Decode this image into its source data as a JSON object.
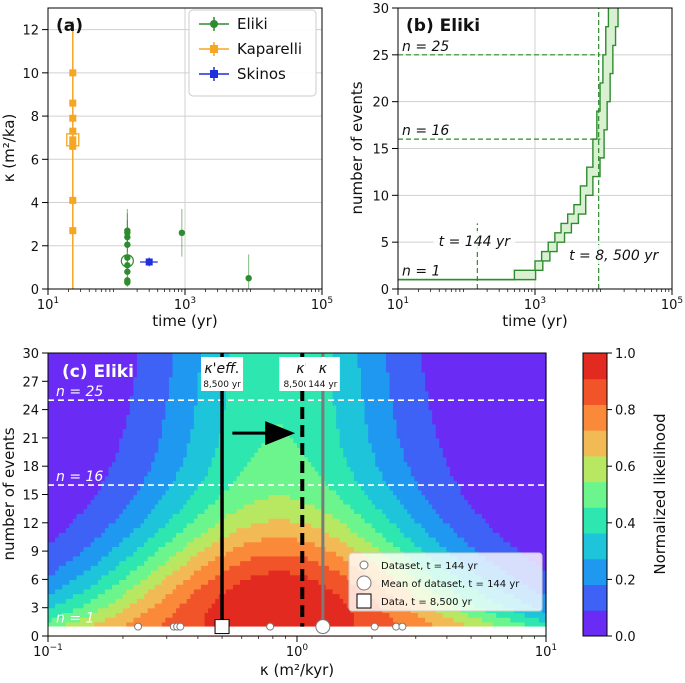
{
  "chart_data": [
    {
      "id": "a",
      "type": "scatter",
      "panel_label": "(a)",
      "xscale": "log",
      "xlim": [
        10,
        100000
      ],
      "ylim": [
        0,
        13
      ],
      "xlabel": "time (yr)",
      "ylabel": "κ (m²/ka)",
      "x_ticks": [
        {
          "value": 10,
          "base": "10",
          "exp": "1"
        },
        {
          "value": 1000,
          "base": "10",
          "exp": "3"
        },
        {
          "value": 100000,
          "base": "10",
          "exp": "5"
        }
      ],
      "y_ticks": [
        0,
        2,
        4,
        6,
        8,
        10,
        12
      ],
      "legend": {
        "position": "top-right",
        "entries": [
          "Eliki",
          "Kaparelli",
          "Skinos"
        ]
      },
      "series": [
        {
          "name": "Eliki",
          "color": "#2e8b2e",
          "points": [
            {
              "x": 144,
              "y": 2.7,
              "ylo": 1.9,
              "yhi": 3.7
            },
            {
              "x": 144,
              "y": 2.6,
              "ylo": 1.9,
              "yhi": 3.5
            },
            {
              "x": 144,
              "y": 2.4,
              "ylo": 1.7,
              "yhi": 3.2
            },
            {
              "x": 144,
              "y": 2.05,
              "ylo": 1.4,
              "yhi": 2.8
            },
            {
              "x": 144,
              "y": 1.45,
              "ylo": 1.0,
              "yhi": 2.0
            },
            {
              "x": 144,
              "y": 1.1,
              "ylo": 0.7,
              "yhi": 1.5
            },
            {
              "x": 144,
              "y": 0.8,
              "ylo": 0.5,
              "yhi": 1.1
            },
            {
              "x": 144,
              "y": 0.4,
              "ylo": 0.2,
              "yhi": 0.65
            },
            {
              "x": 144,
              "y": 0.3,
              "ylo": 0.1,
              "yhi": 0.5
            },
            {
              "x": 900,
              "y": 2.6,
              "ylo": 1.5,
              "yhi": 3.7
            },
            {
              "x": 8500,
              "y": 0.5,
              "ylo": 0.0,
              "yhi": 1.6
            }
          ],
          "mean": {
            "x": 144,
            "y": 1.3
          }
        },
        {
          "name": "Kaparelli",
          "color": "#f5a623",
          "points": [
            {
              "x": 23,
              "y": 10.0
            },
            {
              "x": 23,
              "y": 8.6
            },
            {
              "x": 23,
              "y": 7.9
            },
            {
              "x": 23,
              "y": 7.3
            },
            {
              "x": 23,
              "y": 6.9
            },
            {
              "x": 23,
              "y": 6.6
            },
            {
              "x": 23,
              "y": 4.1
            },
            {
              "x": 23,
              "y": 2.7
            }
          ],
          "mean": {
            "x": 23,
            "y": 6.9
          },
          "vertical_span": [
            0,
            12.4
          ]
        },
        {
          "name": "Skinos",
          "color": "#1f2fdc",
          "points": [
            {
              "x": 300,
              "y": 1.25,
              "ylo": 1.05,
              "yhi": 1.45,
              "xlo": 220,
              "xhi": 400
            }
          ]
        }
      ]
    },
    {
      "id": "b",
      "type": "area",
      "panel_label": "(b) Eliki",
      "xscale": "log",
      "xlim": [
        10,
        100000
      ],
      "ylim": [
        0,
        30
      ],
      "xlabel": "time (yr)",
      "ylabel": "number of events",
      "x_ticks": [
        {
          "value": 10,
          "base": "10",
          "exp": "1"
        },
        {
          "value": 1000,
          "base": "10",
          "exp": "3"
        },
        {
          "value": 100000,
          "base": "10",
          "exp": "5"
        }
      ],
      "y_ticks": [
        0,
        5,
        10,
        15,
        20,
        25,
        30
      ],
      "color": "#2e8b2e",
      "lower_bound": {
        "x": [
          10,
          800,
          1020,
          1300,
          1650,
          2100,
          2700,
          3400,
          4300,
          5500,
          7000,
          8900,
          10200,
          11300,
          12500,
          13700,
          15000,
          16300
        ],
        "y": [
          1,
          1,
          2,
          3,
          4,
          5,
          6,
          7,
          8,
          10,
          12,
          14,
          17,
          20,
          23,
          26,
          28,
          30
        ]
      },
      "upper_bound": {
        "x": [
          10,
          500,
          1000,
          1250,
          1560,
          1950,
          2400,
          3000,
          3700,
          4600,
          5700,
          7000,
          8000,
          8900,
          9800,
          10800,
          11800
        ],
        "y": [
          1,
          2,
          3,
          4,
          5,
          6,
          7,
          8,
          9,
          11,
          13,
          16,
          19,
          22,
          25,
          28,
          30
        ]
      },
      "reference_lines": [
        {
          "kind": "h",
          "value": 25,
          "label": "n = 25"
        },
        {
          "kind": "h",
          "value": 16,
          "label": "n = 16"
        },
        {
          "kind": "h",
          "value": 1,
          "label": "n = 1"
        },
        {
          "kind": "v",
          "value": 144,
          "label": "t = 144 yr",
          "range": [
            0,
            7
          ]
        },
        {
          "kind": "v",
          "value": 8500,
          "label": "t = 8, 500 yr",
          "range": [
            0,
            30
          ]
        }
      ]
    },
    {
      "id": "c",
      "type": "heatmap",
      "panel_label": "(c) Eliki",
      "xscale": "log",
      "xlim": [
        0.1,
        10
      ],
      "ylim": [
        0,
        30
      ],
      "xlabel": "κ (m²/kyr)",
      "ylabel": "number of events",
      "x_ticks": [
        {
          "value": 0.1,
          "base": "10",
          "exp": "−1"
        },
        {
          "value": 1,
          "base": "10",
          "exp": "0"
        },
        {
          "value": 10,
          "base": "10",
          "exp": "1"
        }
      ],
      "y_ticks": [
        0,
        3,
        6,
        9,
        12,
        15,
        18,
        21,
        24,
        27,
        30
      ],
      "colorbar": {
        "label": "Normalized likelihood",
        "range": [
          0,
          1
        ],
        "ticks": [
          "0.0",
          "0.2",
          "0.4",
          "0.6",
          "0.8",
          "1.0"
        ],
        "levels": [
          "#6a2cf5",
          "#3e62f5",
          "#1f98f0",
          "#1ec4d9",
          "#2ee6b0",
          "#6cf58c",
          "#b8e862",
          "#f2ba55",
          "#fa8a3a",
          "#f2542a",
          "#e32a20"
        ]
      },
      "contour_model": {
        "peak_kappa": 0.85,
        "n_ref": 4,
        "cols_per_decade": 70,
        "rows": 60
      },
      "vertical_markers": [
        {
          "name": "κ'eff.",
          "kappa": 0.5,
          "label": "κ'eff.",
          "sub": "8,500 yr",
          "style": "solid-black"
        },
        {
          "name": "κ'",
          "kappa": 1.05,
          "label": "κ'",
          "sub": "8,500 yr",
          "style": "dashed-black"
        },
        {
          "name": "κ",
          "kappa": 1.27,
          "label": "κ",
          "sub": "144 yr",
          "style": "solid-gray"
        }
      ],
      "horizontal_lines": [
        {
          "value": 25,
          "label": "n = 25"
        },
        {
          "value": 16,
          "label": "n = 16"
        },
        {
          "value": 1,
          "label": "n = 1"
        }
      ],
      "arrow": {
        "from": 0.55,
        "to": 0.93,
        "y": 21.5
      },
      "dataset_points": [
        0.23,
        0.32,
        0.33,
        0.34,
        0.78,
        2.05,
        2.5,
        2.65
      ],
      "mean_point": {
        "kappa": 1.27,
        "n": 1
      },
      "data_point": {
        "kappa": 0.5,
        "n": 1
      },
      "legend": {
        "position": "bottom-right",
        "entries": [
          "Dataset, t = 144 yr",
          "Mean of dataset, t = 144 yr",
          "Data, t = 8,500 yr"
        ]
      }
    }
  ]
}
